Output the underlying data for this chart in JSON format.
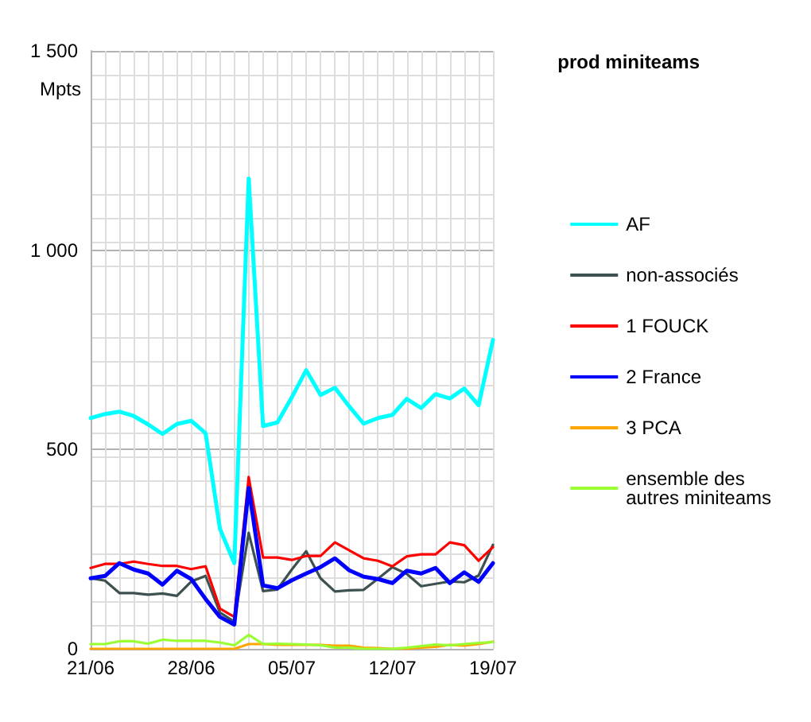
{
  "chart_data": {
    "type": "line",
    "title": "prod miniteams",
    "ylabel": "Mpts",
    "categories": [
      "21/06",
      null,
      null,
      null,
      null,
      null,
      null,
      "28/06",
      null,
      null,
      null,
      null,
      null,
      null,
      "05/07",
      null,
      null,
      null,
      null,
      null,
      null,
      "12/07",
      null,
      null,
      null,
      null,
      null,
      null,
      "19/07"
    ],
    "series": [
      {
        "name": "AF",
        "color": "#00ffff",
        "values": [
          579,
          589,
          595,
          584,
          563,
          539,
          564,
          572,
          541,
          301,
          215,
          1180,
          559,
          568,
          631,
          699,
          637,
          655,
          608,
          565,
          579,
          587,
          627,
          604,
          639,
          628,
          653,
          611,
          775
        ]
      },
      {
        "name": "non-associés",
        "color": "#3d5151",
        "values": [
          177,
          171,
          140,
          140,
          136,
          139,
          133,
          169,
          183,
          91,
          68,
          291,
          145,
          149,
          199,
          245,
          177,
          144,
          147,
          148,
          176,
          205,
          188,
          157,
          163,
          169,
          167,
          184,
          261
        ]
      },
      {
        "name": "1 FOUCK",
        "color": "#ff0000",
        "values": [
          203,
          213,
          213,
          219,
          213,
          208,
          208,
          200,
          207,
          101,
          80,
          431,
          229,
          229,
          223,
          233,
          233,
          267,
          247,
          227,
          221,
          207,
          232,
          237,
          237,
          267,
          260,
          221,
          255
        ]
      },
      {
        "name": "2 France",
        "color": "#0000ff",
        "values": [
          177,
          183,
          215,
          199,
          189,
          161,
          196,
          175,
          125,
          80,
          61,
          404,
          159,
          152,
          172,
          189,
          205,
          227,
          197,
          181,
          175,
          165,
          196,
          189,
          203,
          165,
          192,
          168,
          215
        ]
      },
      {
        "name": "3 PCA",
        "color": "#ffa500",
        "values": [
          0,
          0,
          0,
          0,
          0,
          0,
          0,
          0,
          0,
          0,
          0,
          12,
          12,
          10,
          10,
          10,
          10,
          8,
          8,
          3,
          2,
          0,
          0,
          3,
          5,
          10,
          8,
          12,
          18
        ]
      },
      {
        "name": "ensemble des autres miniteams",
        "color": "#99ff33",
        "values": [
          12,
          12,
          19,
          19,
          13,
          23,
          20,
          20,
          20,
          16,
          9,
          35,
          12,
          13,
          12,
          11,
          9,
          3,
          3,
          0,
          0,
          0,
          3,
          7,
          11,
          9,
          12,
          15,
          17
        ]
      }
    ],
    "ylim": [
      0,
      1500
    ],
    "yticks": [
      0,
      500,
      {
        "value": 1000,
        "label": "1 000"
      },
      {
        "value": 1500,
        "label": "1 500"
      }
    ],
    "grid": true,
    "legend": "right",
    "marker": "none",
    "line_style": "solid"
  }
}
